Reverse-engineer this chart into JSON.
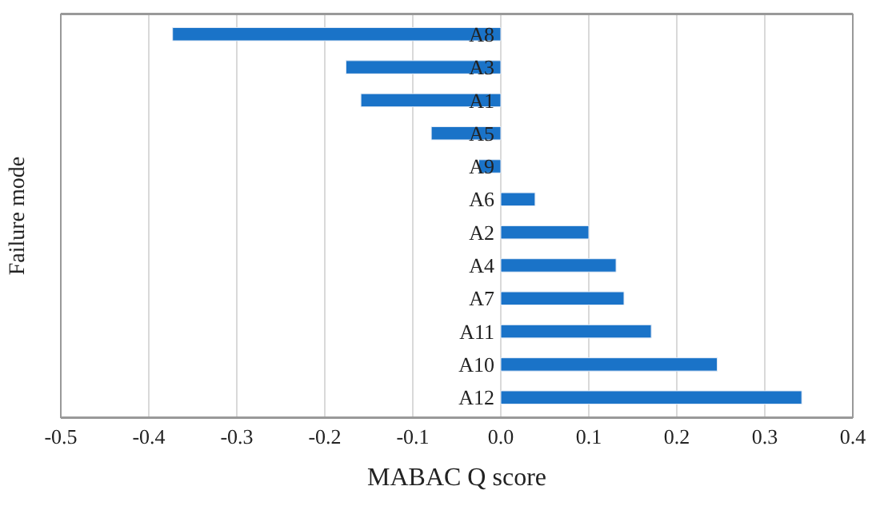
{
  "chart_data": {
    "type": "bar",
    "orientation": "horizontal",
    "xlabel": "MABAC Q score",
    "ylabel": "Failure mode",
    "categories": [
      "A8",
      "A3",
      "A1",
      "A5",
      "A9",
      "A6",
      "A2",
      "A4",
      "A7",
      "A11",
      "A10",
      "A12"
    ],
    "values": [
      -0.373,
      -0.176,
      -0.159,
      -0.079,
      -0.025,
      0.039,
      0.1,
      0.131,
      0.14,
      0.171,
      0.246,
      0.342
    ],
    "color": "#1a73c8",
    "xlim": [
      -0.5,
      0.4
    ],
    "xticks": [
      -0.5,
      -0.4,
      -0.3,
      -0.2,
      -0.1,
      {
        "value": 0,
        "label": "0.0"
      },
      0.1,
      0.2,
      0.3,
      0.4
    ],
    "grid": "x"
  }
}
